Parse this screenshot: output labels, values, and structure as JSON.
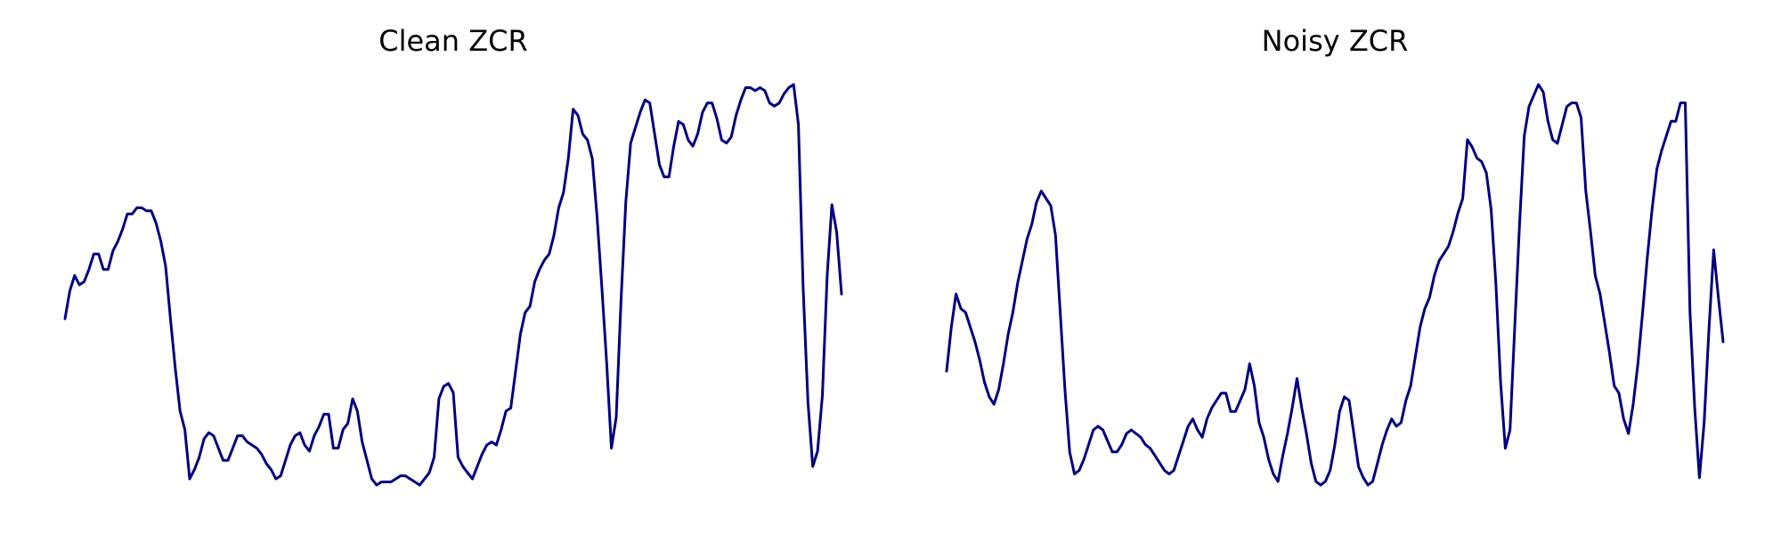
{
  "figure": {
    "line_color": "#000080",
    "background": "#ffffff"
  },
  "chart_data": [
    {
      "type": "line",
      "title": "Clean ZCR",
      "xlabel": "",
      "ylabel": "",
      "grid": false,
      "axes_visible": false,
      "series": [
        {
          "values": [
            0.6,
            0.69,
            0.74,
            0.71,
            0.72,
            0.76,
            0.81,
            0.81,
            0.76,
            0.76,
            0.82,
            0.85,
            0.89,
            0.94,
            0.94,
            0.96,
            0.96,
            0.95,
            0.95,
            0.91,
            0.85,
            0.77,
            0.6,
            0.44,
            0.3,
            0.24,
            0.08,
            0.11,
            0.15,
            0.21,
            0.23,
            0.22,
            0.18,
            0.14,
            0.14,
            0.18,
            0.22,
            0.22,
            0.2,
            0.19,
            0.18,
            0.16,
            0.13,
            0.11,
            0.08,
            0.09,
            0.14,
            0.19,
            0.22,
            0.23,
            0.19,
            0.17,
            0.22,
            0.25,
            0.29,
            0.29,
            0.18,
            0.18,
            0.24,
            0.26,
            0.34,
            0.3,
            0.2,
            0.14,
            0.08,
            0.06,
            0.07,
            0.07,
            0.07,
            0.08,
            0.09,
            0.09,
            0.08,
            0.07,
            0.06,
            0.08,
            0.1,
            0.15,
            0.34,
            0.38,
            0.39,
            0.36,
            0.15,
            0.12,
            0.1,
            0.08,
            0.12,
            0.16,
            0.19,
            0.2,
            0.19,
            0.24,
            0.3,
            0.31,
            0.43,
            0.55,
            0.62,
            0.64,
            0.72,
            0.76,
            0.79,
            0.81,
            0.87,
            0.96,
            1.01,
            1.12,
            1.28,
            1.26,
            1.2,
            1.18,
            1.12,
            0.93,
            0.7,
            0.46,
            0.18,
            0.28,
            0.66,
            0.98,
            1.17,
            1.22,
            1.27,
            1.31,
            1.3,
            1.2,
            1.1,
            1.06,
            1.06,
            1.16,
            1.24,
            1.23,
            1.18,
            1.16,
            1.2,
            1.27,
            1.3,
            1.3,
            1.25,
            1.18,
            1.17,
            1.19,
            1.26,
            1.31,
            1.35,
            1.35,
            1.34,
            1.35,
            1.34,
            1.3,
            1.29,
            1.3,
            1.33,
            1.35,
            1.36,
            1.23,
            0.7,
            0.33,
            0.12,
            0.17,
            0.35,
            0.74,
            0.97,
            0.88,
            0.68
          ]
        }
      ]
    },
    {
      "type": "line",
      "title": "Noisy ZCR",
      "xlabel": "",
      "ylabel": "",
      "grid": false,
      "axes_visible": false,
      "series": [
        {
          "values": [
            0.58,
            0.7,
            0.79,
            0.75,
            0.74,
            0.7,
            0.66,
            0.61,
            0.55,
            0.51,
            0.49,
            0.53,
            0.6,
            0.68,
            0.74,
            0.82,
            0.88,
            0.94,
            0.98,
            1.04,
            1.07,
            1.05,
            1.03,
            0.95,
            0.74,
            0.53,
            0.36,
            0.3,
            0.31,
            0.34,
            0.38,
            0.42,
            0.43,
            0.42,
            0.39,
            0.36,
            0.36,
            0.38,
            0.41,
            0.42,
            0.41,
            0.4,
            0.38,
            0.37,
            0.35,
            0.33,
            0.31,
            0.3,
            0.31,
            0.35,
            0.39,
            0.43,
            0.45,
            0.42,
            0.4,
            0.45,
            0.48,
            0.5,
            0.52,
            0.52,
            0.47,
            0.47,
            0.5,
            0.53,
            0.6,
            0.54,
            0.44,
            0.4,
            0.34,
            0.3,
            0.28,
            0.35,
            0.41,
            0.48,
            0.56,
            0.48,
            0.41,
            0.33,
            0.28,
            0.27,
            0.28,
            0.31,
            0.38,
            0.47,
            0.51,
            0.5,
            0.41,
            0.32,
            0.29,
            0.27,
            0.28,
            0.33,
            0.38,
            0.42,
            0.45,
            0.43,
            0.44,
            0.5,
            0.54,
            0.62,
            0.7,
            0.75,
            0.78,
            0.84,
            0.88,
            0.9,
            0.92,
            0.96,
            1.01,
            1.05,
            1.21,
            1.19,
            1.16,
            1.15,
            1.12,
            1.02,
            0.82,
            0.55,
            0.37,
            0.42,
            0.7,
            0.98,
            1.22,
            1.3,
            1.33,
            1.36,
            1.34,
            1.26,
            1.21,
            1.2,
            1.25,
            1.3,
            1.31,
            1.31,
            1.27,
            1.07,
            0.96,
            0.84,
            0.79,
            0.71,
            0.63,
            0.54,
            0.52,
            0.45,
            0.41,
            0.49,
            0.6,
            0.74,
            0.89,
            1.02,
            1.13,
            1.18,
            1.22,
            1.26,
            1.26,
            1.31,
            1.31,
            0.74,
            0.48,
            0.29,
            0.44,
            0.69,
            0.91,
            0.78,
            0.66
          ]
        }
      ]
    }
  ]
}
